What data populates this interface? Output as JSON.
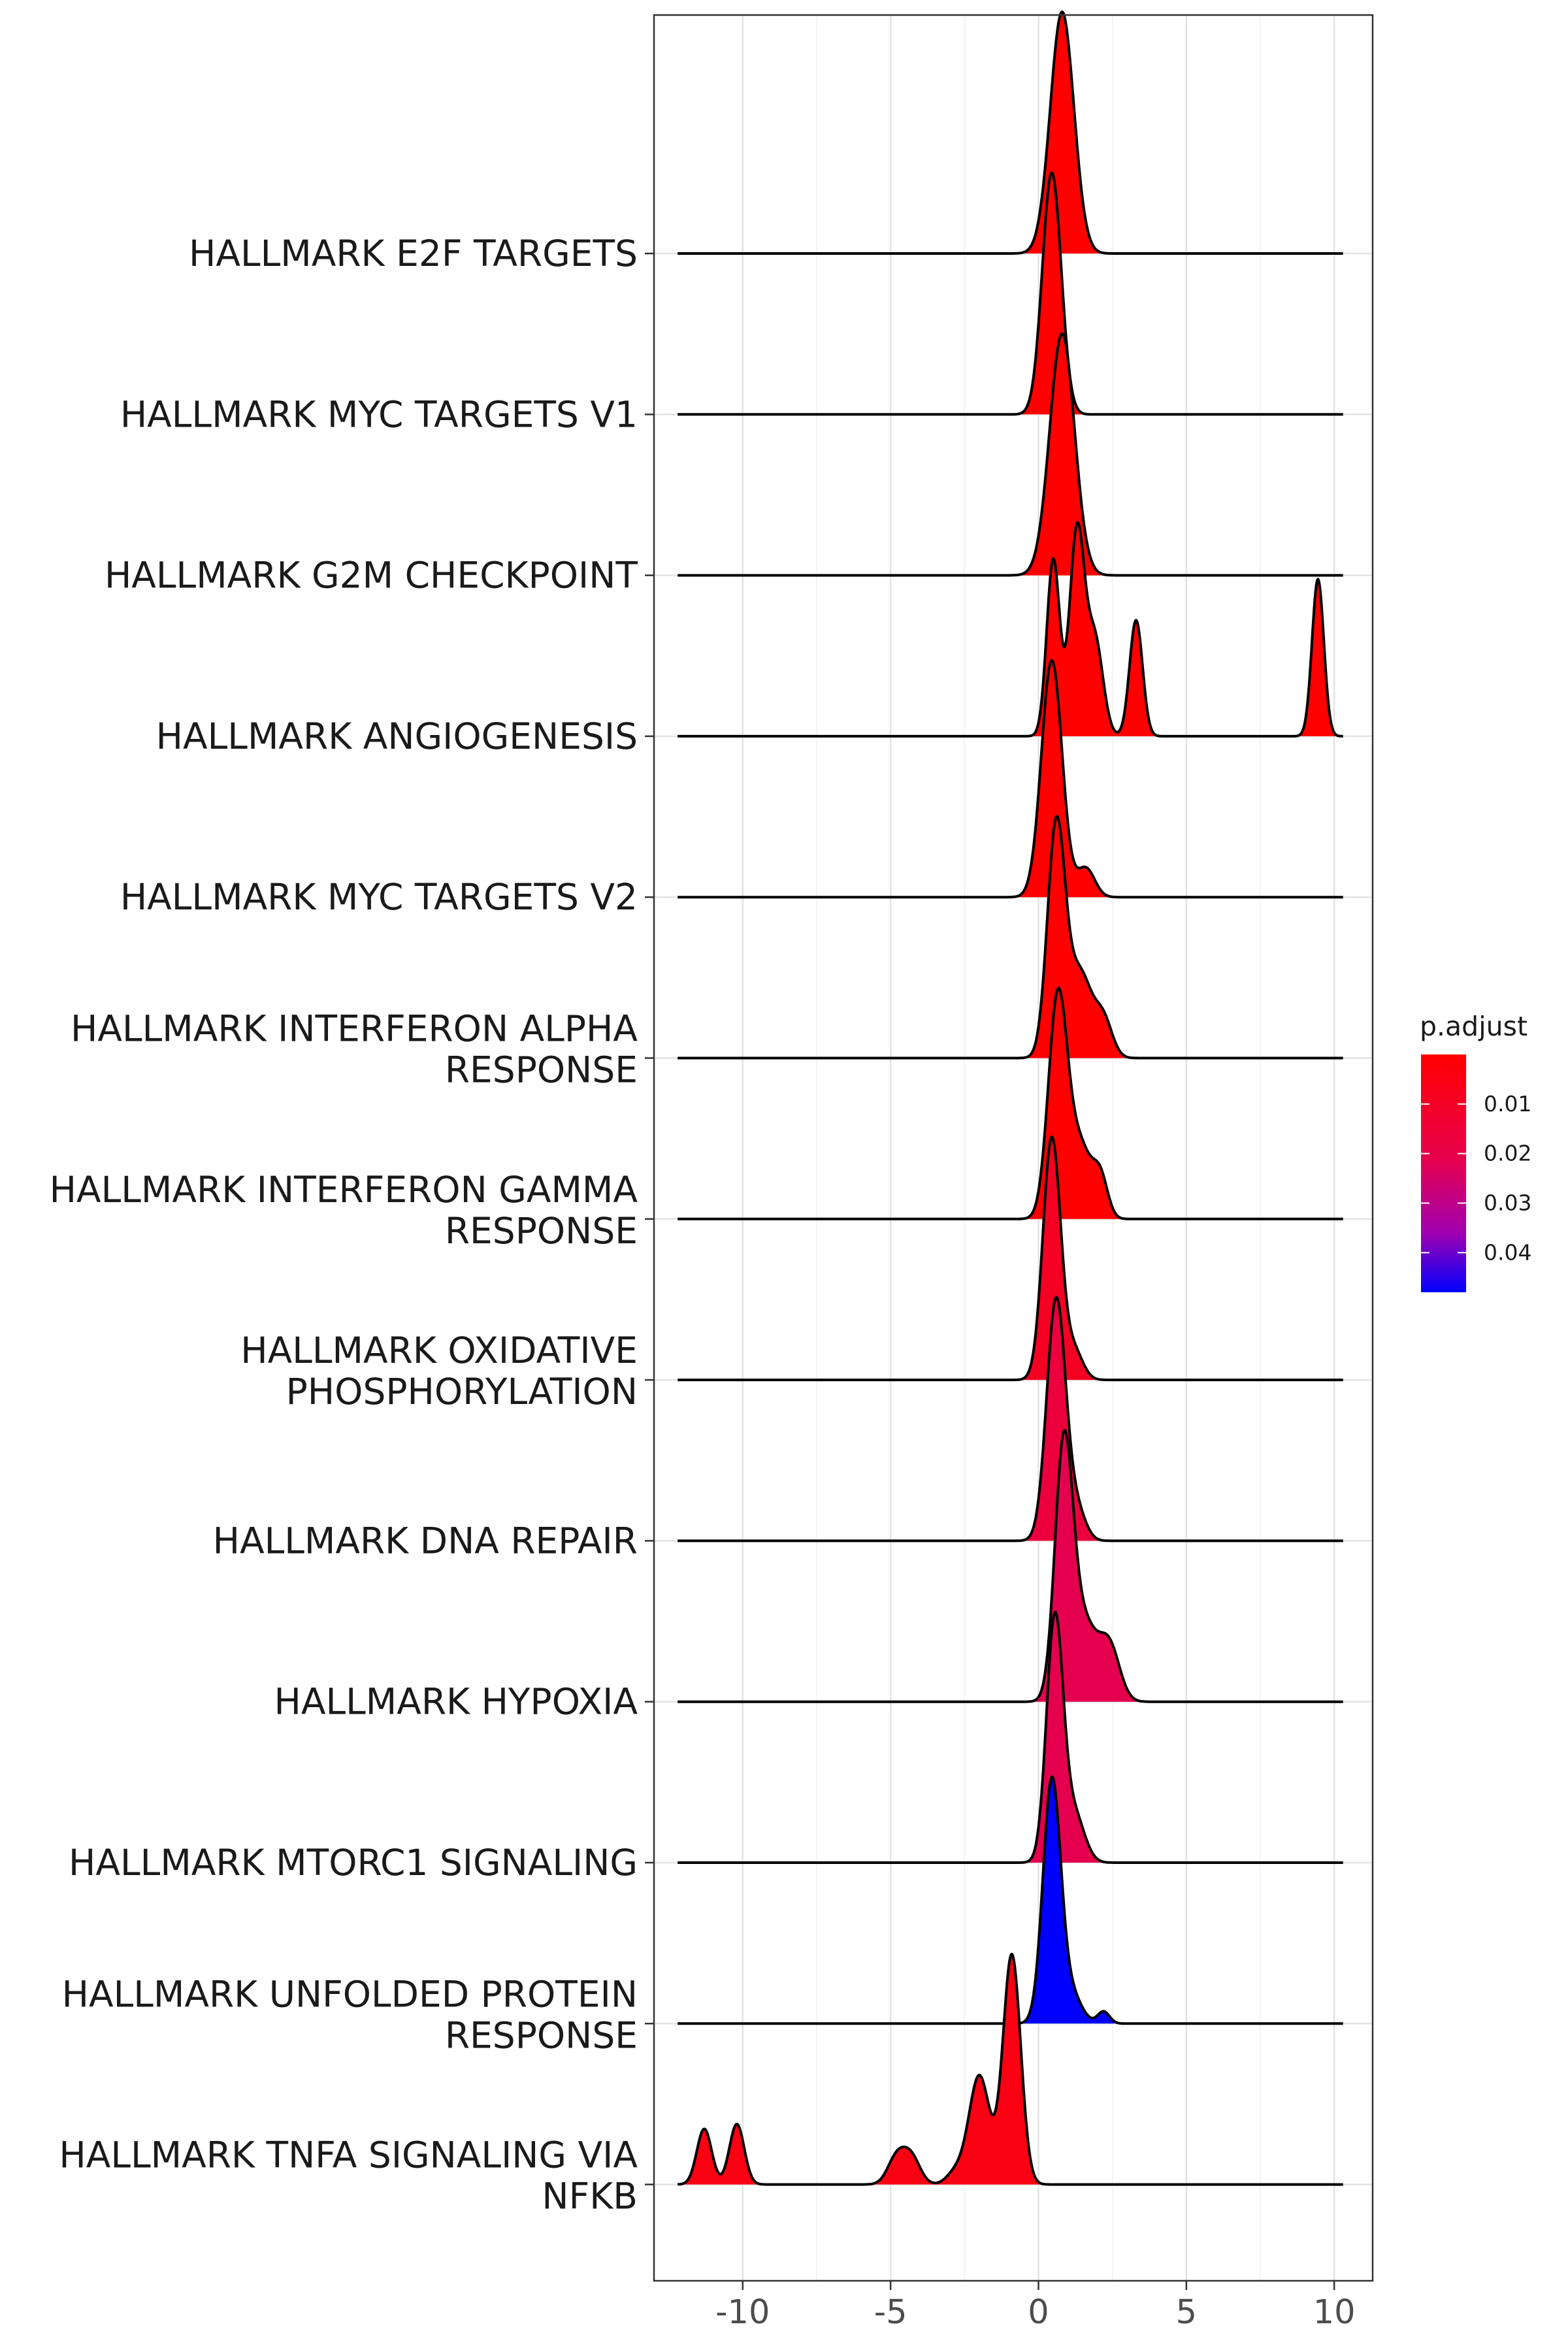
{
  "chart_data": {
    "type": "ridgeline",
    "title": "",
    "xlabel": "",
    "ylabel": "",
    "xlim": [
      -13.0,
      11.3
    ],
    "x_ticks": [
      -10,
      -5,
      0,
      5,
      10
    ],
    "x_tick_labels": [
      "-10",
      "-5",
      "0",
      "5",
      "10"
    ],
    "grid": true,
    "legend": {
      "title": "p.adjust",
      "position": "right",
      "type": "colorbar",
      "low_color": "#ff0000",
      "high_color": "#0000ff",
      "range": [
        0.0,
        0.048
      ],
      "ticks": [
        0.01,
        0.02,
        0.03,
        0.04
      ],
      "tick_labels": [
        "0.01",
        "0.02",
        "0.03",
        "0.04"
      ]
    },
    "series": [
      {
        "label_lines": [
          "HALLMARK E2F TARGETS"
        ],
        "p_adjust": 0.0,
        "peaks": [
          [
            0.8,
            0.4,
            1.0
          ]
        ],
        "range": [
          0.0,
          2.2
        ]
      },
      {
        "label_lines": [
          "HALLMARK MYC TARGETS V1"
        ],
        "p_adjust": 0.0,
        "peaks": [
          [
            0.45,
            0.32,
            1.0
          ]
        ],
        "range": [
          -0.3,
          1.7
        ]
      },
      {
        "label_lines": [
          "HALLMARK G2M CHECKPOINT"
        ],
        "p_adjust": 0.0,
        "peaks": [
          [
            0.8,
            0.42,
            1.0
          ]
        ],
        "range": [
          -0.1,
          2.0
        ]
      },
      {
        "label_lines": [
          "HALLMARK ANGIOGENESIS"
        ],
        "p_adjust": 0.0,
        "peaks": [
          [
            0.5,
            0.22,
            0.73
          ],
          [
            1.3,
            0.25,
            0.84
          ],
          [
            1.9,
            0.28,
            0.4
          ],
          [
            3.3,
            0.22,
            0.48
          ],
          [
            9.45,
            0.2,
            0.65
          ]
        ],
        "range": [
          -0.1,
          10.3
        ]
      },
      {
        "label_lines": [
          "HALLMARK MYC TARGETS V2"
        ],
        "p_adjust": 0.0,
        "peaks": [
          [
            0.45,
            0.35,
            0.98
          ],
          [
            1.6,
            0.3,
            0.12
          ]
        ],
        "range": [
          -0.6,
          2.3
        ]
      },
      {
        "label_lines": [
          "HALLMARK INTERFERON ALPHA",
          "RESPONSE"
        ],
        "p_adjust": 0.0,
        "peaks": [
          [
            0.6,
            0.3,
            0.95
          ],
          [
            1.4,
            0.4,
            0.35
          ],
          [
            2.2,
            0.3,
            0.15
          ]
        ],
        "range": [
          -0.3,
          2.9
        ]
      },
      {
        "label_lines": [
          "HALLMARK INTERFERON GAMMA",
          "RESPONSE"
        ],
        "p_adjust": 0.0,
        "peaks": [
          [
            0.65,
            0.32,
            0.9
          ],
          [
            1.4,
            0.4,
            0.3
          ],
          [
            2.1,
            0.25,
            0.15
          ]
        ],
        "range": [
          -0.1,
          2.9
        ]
      },
      {
        "label_lines": [
          "HALLMARK OXIDATIVE",
          "PHOSPHORYLATION"
        ],
        "p_adjust": 0.004,
        "peaks": [
          [
            0.45,
            0.3,
            1.0
          ],
          [
            1.2,
            0.3,
            0.12
          ]
        ],
        "range": [
          -0.1,
          2.0
        ]
      },
      {
        "label_lines": [
          "HALLMARK DNA REPAIR"
        ],
        "p_adjust": 0.007,
        "peaks": [
          [
            0.6,
            0.32,
            1.0
          ],
          [
            1.3,
            0.3,
            0.12
          ]
        ],
        "range": [
          -0.4,
          2.0
        ]
      },
      {
        "label_lines": [
          "HALLMARK HYPOXIA"
        ],
        "p_adjust": 0.009,
        "peaks": [
          [
            0.85,
            0.3,
            1.0
          ],
          [
            1.5,
            0.45,
            0.33
          ],
          [
            2.4,
            0.35,
            0.22
          ]
        ],
        "range": [
          0.0,
          3.3
        ]
      },
      {
        "label_lines": [
          "HALLMARK MTORC1 SIGNALING"
        ],
        "p_adjust": 0.009,
        "peaks": [
          [
            0.55,
            0.28,
            1.0
          ],
          [
            1.2,
            0.35,
            0.2
          ]
        ],
        "range": [
          -0.3,
          2.3
        ]
      },
      {
        "label_lines": [
          "HALLMARK UNFOLDED PROTEIN",
          "RESPONSE"
        ],
        "p_adjust": 0.048,
        "peaks": [
          [
            0.45,
            0.3,
            1.0
          ],
          [
            1.1,
            0.35,
            0.12
          ],
          [
            2.2,
            0.2,
            0.05
          ]
        ],
        "range": [
          -0.4,
          2.8
        ]
      },
      {
        "label_lines": [
          "HALLMARK TNFA SIGNALING VIA",
          "NFKB"
        ],
        "p_adjust": 0.002,
        "peaks": [
          [
            -11.3,
            0.25,
            0.23
          ],
          [
            -10.2,
            0.25,
            0.25
          ],
          [
            -4.8,
            0.3,
            0.11
          ],
          [
            -4.3,
            0.3,
            0.11
          ],
          [
            -2.8,
            0.3,
            0.05
          ],
          [
            -2.0,
            0.35,
            0.45
          ],
          [
            -0.9,
            0.3,
            0.95
          ]
        ],
        "range": [
          -11.9,
          -0.4
        ]
      }
    ]
  }
}
